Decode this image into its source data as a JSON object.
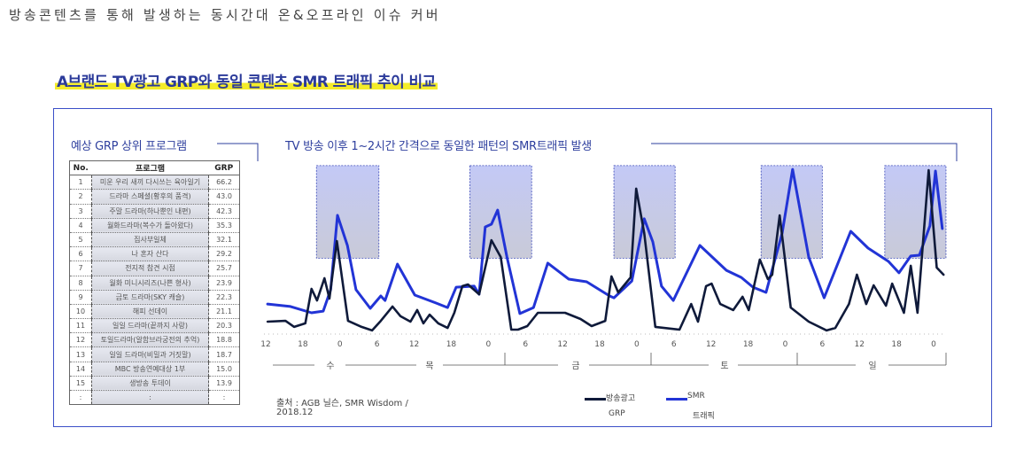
{
  "header": {
    "title": "방송콘텐츠를 통해 발생하는 동시간대 온&오프라인 이슈 커버",
    "section_title": "A브랜드 TV광고 GRP와 동일 콘텐츠 SMR 트래픽 추이 비교"
  },
  "table": {
    "label": "예상 GRP  상위 프로그램",
    "columns": [
      "No.",
      "프로그램",
      "GRP"
    ],
    "rows": [
      [
        "1",
        "미운 우리 새끼 다시쓰는 육아일기",
        "66.2"
      ],
      [
        "2",
        "드라마 스페셜(황후의 품격)",
        "43.0"
      ],
      [
        "3",
        "주말 드라마(하나뿐인 내편)",
        "42.3"
      ],
      [
        "4",
        "월화드라마(복수가 돌아왔다)",
        "35.3"
      ],
      [
        "5",
        "집사부일체",
        "32.1"
      ],
      [
        "6",
        "나 혼자 산다",
        "29.2"
      ],
      [
        "7",
        "전지적 참견 시점",
        "25.7"
      ],
      [
        "8",
        "월화 미니시리즈(나쁜 형사)",
        "23.9"
      ],
      [
        "9",
        "금토 드라마(SKY 캐슬)",
        "22.3"
      ],
      [
        "10",
        "해피 선데이",
        "21.1"
      ],
      [
        "11",
        "일일 드라마(끝까지 사랑)",
        "20.3"
      ],
      [
        "12",
        "토일드라마(알함브라궁전의 추억)",
        "18.8"
      ],
      [
        "13",
        "일일 드라마(비밀과 거짓말)",
        "18.7"
      ],
      [
        "14",
        "MBC 방송연예대상 1부",
        "15.0"
      ],
      [
        "15",
        "생방송 투데이",
        "13.9"
      ],
      [
        ":",
        ":",
        ":"
      ]
    ]
  },
  "chart_label": "TV 방송 이후 1~2시간 간격으로 동일한 패턴의 SMR트래픽 발생",
  "source": {
    "line1": "출처 : AGB 닐슨, SMR Wisdom  /",
    "line2": "2018.12"
  },
  "legend": [
    {
      "label1": "방송광고",
      "label2": "GRP",
      "color": "#0f1a3a"
    },
    {
      "label1": "SMR",
      "label2": "트래픽",
      "color": "#2234d6"
    }
  ],
  "chart_data": {
    "type": "line",
    "x_tick_labels": [
      "12",
      "18",
      "0",
      "6",
      "12",
      "18",
      "0",
      "6",
      "12",
      "18",
      "0",
      "6",
      "12",
      "18",
      "0",
      "6",
      "12",
      "18",
      "0"
    ],
    "days": [
      "수",
      "목",
      "금",
      "토",
      "일"
    ],
    "x_range_hours": [
      12,
      120
    ],
    "y_range": [
      0,
      100
    ],
    "grid": false,
    "highlight_ranges_hours": [
      [
        20.2,
        30.3
      ],
      [
        45.0,
        55.0
      ],
      [
        68.3,
        78.2
      ],
      [
        92.1,
        102.0
      ],
      [
        112.1,
        122.0
      ]
    ],
    "highlight_color": "#b9c0f2",
    "series": [
      {
        "name": "방송광고 GRP",
        "color": "#0f1a3a",
        "points": [
          [
            12.3,
            6.3
          ],
          [
            15.2,
            6.8
          ],
          [
            16.6,
            3.2
          ],
          [
            18.4,
            5.3
          ],
          [
            19.4,
            25.8
          ],
          [
            20.3,
            18.9
          ],
          [
            21.5,
            32.1
          ],
          [
            22.3,
            20.0
          ],
          [
            23.5,
            54.2
          ],
          [
            25.3,
            6.8
          ],
          [
            27.5,
            3.2
          ],
          [
            29.2,
            1.1
          ],
          [
            30.6,
            6.8
          ],
          [
            32.5,
            15.3
          ],
          [
            33.8,
            9.5
          ],
          [
            35.4,
            6.3
          ],
          [
            36.5,
            13.2
          ],
          [
            37.5,
            5.3
          ],
          [
            38.5,
            10.5
          ],
          [
            39.9,
            5.3
          ],
          [
            41.4,
            2.6
          ],
          [
            42.5,
            11.6
          ],
          [
            43.8,
            27.4
          ],
          [
            44.7,
            28.4
          ],
          [
            46.5,
            22.6
          ],
          [
            48.5,
            54.7
          ],
          [
            50.0,
            44.7
          ],
          [
            51.7,
            1.6
          ],
          [
            52.8,
            1.6
          ],
          [
            54.3,
            3.7
          ],
          [
            56.0,
            11.6
          ],
          [
            60.4,
            11.6
          ],
          [
            62.9,
            7.9
          ],
          [
            64.7,
            3.7
          ],
          [
            66.9,
            6.8
          ],
          [
            67.9,
            33.2
          ],
          [
            69.0,
            23.7
          ],
          [
            71.0,
            32.6
          ],
          [
            71.9,
            85.3
          ],
          [
            73.2,
            58.9
          ],
          [
            75.0,
            3.2
          ],
          [
            78.9,
            1.6
          ],
          [
            80.8,
            16.8
          ],
          [
            81.9,
            6.3
          ],
          [
            83.2,
            27.4
          ],
          [
            84.1,
            28.9
          ],
          [
            85.5,
            16.8
          ],
          [
            87.6,
            13.2
          ],
          [
            89.1,
            21.1
          ],
          [
            90.1,
            13.2
          ],
          [
            91.9,
            43.2
          ],
          [
            93.2,
            31.6
          ],
          [
            93.9,
            34.2
          ],
          [
            95.1,
            69.5
          ],
          [
            96.9,
            14.7
          ],
          [
            99.8,
            6.3
          ],
          [
            102.7,
            1.1
          ],
          [
            104.1,
            2.6
          ],
          [
            106.3,
            16.8
          ],
          [
            107.6,
            34.2
          ],
          [
            109.1,
            16.8
          ],
          [
            110.3,
            27.9
          ],
          [
            112.3,
            15.8
          ],
          [
            113.3,
            28.9
          ],
          [
            115.2,
            11.6
          ],
          [
            116.3,
            39.5
          ],
          [
            117.4,
            11.6
          ],
          [
            119.2,
            96.3
          ],
          [
            120.5,
            38.4
          ],
          [
            121.6,
            34.2
          ]
        ]
      },
      {
        "name": "SMR 트래픽",
        "color": "#2234d6",
        "points": [
          [
            12.3,
            16.8
          ],
          [
            16.0,
            15.3
          ],
          [
            19.4,
            11.6
          ],
          [
            21.3,
            12.6
          ],
          [
            22.5,
            25.3
          ],
          [
            23.6,
            69.5
          ],
          [
            25.2,
            51.6
          ],
          [
            26.6,
            25.3
          ],
          [
            28.9,
            14.2
          ],
          [
            30.6,
            21.6
          ],
          [
            31.3,
            18.9
          ],
          [
            33.3,
            40.5
          ],
          [
            36.1,
            22.1
          ],
          [
            39.5,
            17.4
          ],
          [
            41.4,
            14.7
          ],
          [
            42.8,
            26.8
          ],
          [
            45.7,
            27.4
          ],
          [
            46.5,
            22.6
          ],
          [
            47.5,
            62.6
          ],
          [
            48.5,
            64.2
          ],
          [
            49.5,
            72.6
          ],
          [
            51.0,
            44.7
          ],
          [
            53.1,
            11.1
          ],
          [
            55.3,
            14.7
          ],
          [
            57.6,
            41.1
          ],
          [
            61.0,
            31.6
          ],
          [
            63.9,
            30.0
          ],
          [
            67.6,
            21.6
          ],
          [
            68.3,
            20.5
          ],
          [
            71.2,
            30.5
          ],
          [
            73.2,
            67.4
          ],
          [
            74.6,
            53.7
          ],
          [
            76.0,
            27.4
          ],
          [
            77.9,
            18.9
          ],
          [
            82.2,
            51.6
          ],
          [
            86.5,
            36.8
          ],
          [
            88.9,
            32.6
          ],
          [
            90.8,
            26.8
          ],
          [
            92.9,
            23.7
          ],
          [
            95.5,
            58.9
          ],
          [
            97.2,
            96.8
          ],
          [
            99.8,
            44.7
          ],
          [
            102.3,
            20.5
          ],
          [
            106.6,
            60.0
          ],
          [
            109.4,
            50.0
          ],
          [
            112.7,
            42.1
          ],
          [
            114.4,
            35.3
          ],
          [
            116.3,
            45.3
          ],
          [
            117.7,
            45.8
          ],
          [
            119.4,
            63.2
          ],
          [
            120.3,
            95.8
          ],
          [
            121.4,
            61.6
          ]
        ]
      }
    ]
  }
}
